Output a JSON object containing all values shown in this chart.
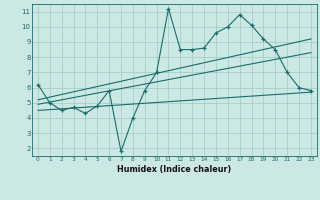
{
  "title": "",
  "xlabel": "Humidex (Indice chaleur)",
  "ylabel": "",
  "background_color": "#cce8e4",
  "grid_color": "#a8cec9",
  "line_color": "#1a6b6b",
  "xlim": [
    -0.5,
    23.5
  ],
  "ylim": [
    1.5,
    11.5
  ],
  "xticks": [
    0,
    1,
    2,
    3,
    4,
    5,
    6,
    7,
    8,
    9,
    10,
    11,
    12,
    13,
    14,
    15,
    16,
    17,
    18,
    19,
    20,
    21,
    22,
    23
  ],
  "yticks": [
    2,
    3,
    4,
    5,
    6,
    7,
    8,
    9,
    10,
    11
  ],
  "scatter_x": [
    0,
    1,
    2,
    3,
    4,
    5,
    6,
    7,
    8,
    9,
    10,
    11,
    12,
    13,
    14,
    15,
    16,
    17,
    18,
    19,
    20,
    21,
    22,
    23
  ],
  "scatter_y": [
    6.2,
    5.0,
    4.5,
    4.7,
    4.3,
    4.8,
    5.8,
    1.8,
    4.0,
    5.8,
    7.0,
    11.2,
    8.5,
    8.5,
    8.6,
    9.6,
    10.0,
    10.8,
    10.1,
    9.2,
    8.5,
    7.0,
    6.0,
    5.8
  ],
  "trend1_x": [
    0,
    23
  ],
  "trend1_y": [
    5.2,
    9.2
  ],
  "trend2_x": [
    0,
    23
  ],
  "trend2_y": [
    4.9,
    8.3
  ],
  "trend3_x": [
    0,
    23
  ],
  "trend3_y": [
    4.5,
    5.7
  ]
}
